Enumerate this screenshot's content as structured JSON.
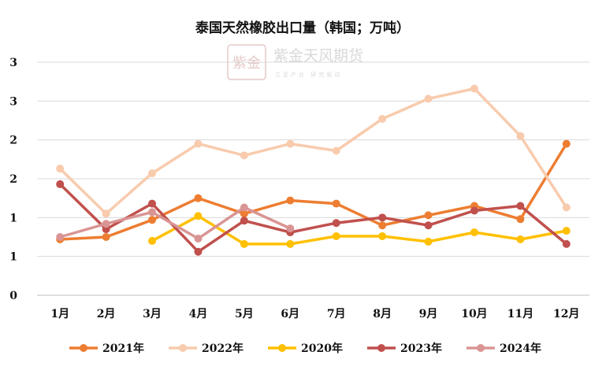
{
  "watermark": {
    "name": "紫金天风期货",
    "tagline": "立足产业 研究驱动"
  },
  "chart_data": {
    "type": "line",
    "title": "泰国天然橡胶出口量（韩国；万吨）",
    "xlabel": "",
    "ylabel": "",
    "categories": [
      "1月",
      "2月",
      "3月",
      "4月",
      "5月",
      "6月",
      "7月",
      "8月",
      "9月",
      "10月",
      "11月",
      "12月"
    ],
    "y_tick_labels": [
      "0",
      "1",
      "1",
      "2",
      "2",
      "3",
      "3"
    ],
    "ylim": [
      0,
      3
    ],
    "grid": true,
    "legend_position": "bottom",
    "series": [
      {
        "name": "2021年",
        "color": "#ED7D31",
        "values": [
          0.72,
          0.75,
          0.97,
          1.25,
          1.05,
          1.22,
          1.18,
          0.9,
          1.03,
          1.15,
          0.98,
          1.95
        ]
      },
      {
        "name": "2022年",
        "color": "#F8CBAD",
        "values": [
          1.63,
          1.05,
          1.57,
          1.95,
          1.8,
          1.95,
          1.86,
          2.27,
          2.53,
          2.66,
          2.05,
          1.13
        ]
      },
      {
        "name": "2020年",
        "color": "#FFC000",
        "values": [
          null,
          null,
          0.7,
          1.02,
          0.66,
          0.66,
          0.76,
          0.76,
          0.69,
          0.81,
          0.72,
          0.83
        ]
      },
      {
        "name": "2023年",
        "color": "#C0504D",
        "values": [
          1.43,
          0.85,
          1.18,
          0.56,
          0.96,
          0.81,
          0.93,
          1.0,
          0.9,
          1.09,
          1.15,
          0.66
        ]
      },
      {
        "name": "2024年",
        "color": "#D99594",
        "values": [
          0.75,
          0.92,
          1.07,
          0.73,
          1.13,
          0.86,
          null,
          null,
          null,
          null,
          null,
          null
        ]
      }
    ]
  }
}
